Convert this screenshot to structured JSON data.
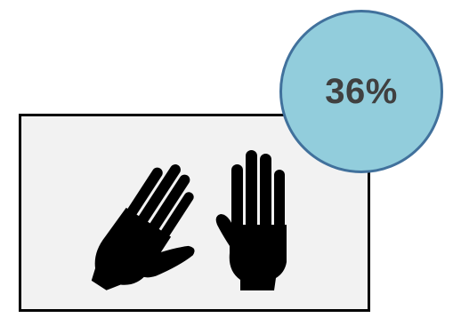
{
  "card": {
    "icon": "raised-hands-icon",
    "background_color": "#f2f2f2",
    "border_color": "#000000"
  },
  "badge": {
    "label": "36%",
    "value": 0.36,
    "fill_color": "#92cddc",
    "border_color": "#41719c",
    "text_color": "#404040"
  }
}
